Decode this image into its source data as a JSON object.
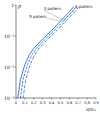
{
  "chart_data": {
    "type": "line",
    "log": "y",
    "x_label": "σ/σₘ",
    "y_label": "P",
    "xlim": [
      0,
      0.9
    ],
    "xticks": [
      0,
      {
        "value": 0.1,
        "label": "0,1"
      },
      {
        "value": 0.2,
        "label": "0,2"
      },
      {
        "value": 0.3,
        "label": "0,3"
      },
      {
        "value": 0.4,
        "label": "0,4"
      },
      {
        "value": 0.5,
        "label": "0,5"
      },
      {
        "value": 0.6,
        "label": "0,6"
      },
      {
        "value": 0.7,
        "label": "0,7"
      },
      {
        "value": 0.8,
        "label": "0,8"
      },
      {
        "value": 0.9,
        "label": "0,9"
      }
    ],
    "ylim": [
      0.001,
      1
    ],
    "yticks": [
      {
        "value": 0.001,
        "label": "10⁻³"
      },
      {
        "value": 0.01,
        "label": "10⁻²"
      },
      {
        "value": 0.1,
        "label": "10⁻¹"
      },
      1
    ],
    "series": [
      {
        "name": "3 paliers",
        "color": "#2e6fc0",
        "line_style": "dashdot",
        "x": [
          0.08,
          0.11,
          0.16,
          0.21,
          0.26,
          0.36,
          0.46,
          0.56,
          0.66,
          0.71
        ],
        "values": [
          0.001,
          0.004,
          0.012,
          0.025,
          0.04,
          0.08,
          0.15,
          0.3,
          0.6,
          0.9
        ]
      },
      {
        "name": "4 paliers",
        "color": "#2e6fc0",
        "line_style": "dashed",
        "x": [
          0.05,
          0.08,
          0.13,
          0.18,
          0.23,
          0.33,
          0.43,
          0.53,
          0.63,
          0.68
        ],
        "values": [
          0.001,
          0.004,
          0.012,
          0.025,
          0.04,
          0.08,
          0.15,
          0.3,
          0.6,
          0.9
        ]
      },
      {
        "name": "5 paliers",
        "color": "#2e6fc0",
        "line_style": "solid",
        "x": [
          0.02,
          0.05,
          0.1,
          0.15,
          0.2,
          0.3,
          0.4,
          0.5,
          0.6,
          0.65
        ],
        "values": [
          0.001,
          0.004,
          0.012,
          0.025,
          0.04,
          0.08,
          0.15,
          0.3,
          0.6,
          0.9
        ]
      }
    ]
  }
}
